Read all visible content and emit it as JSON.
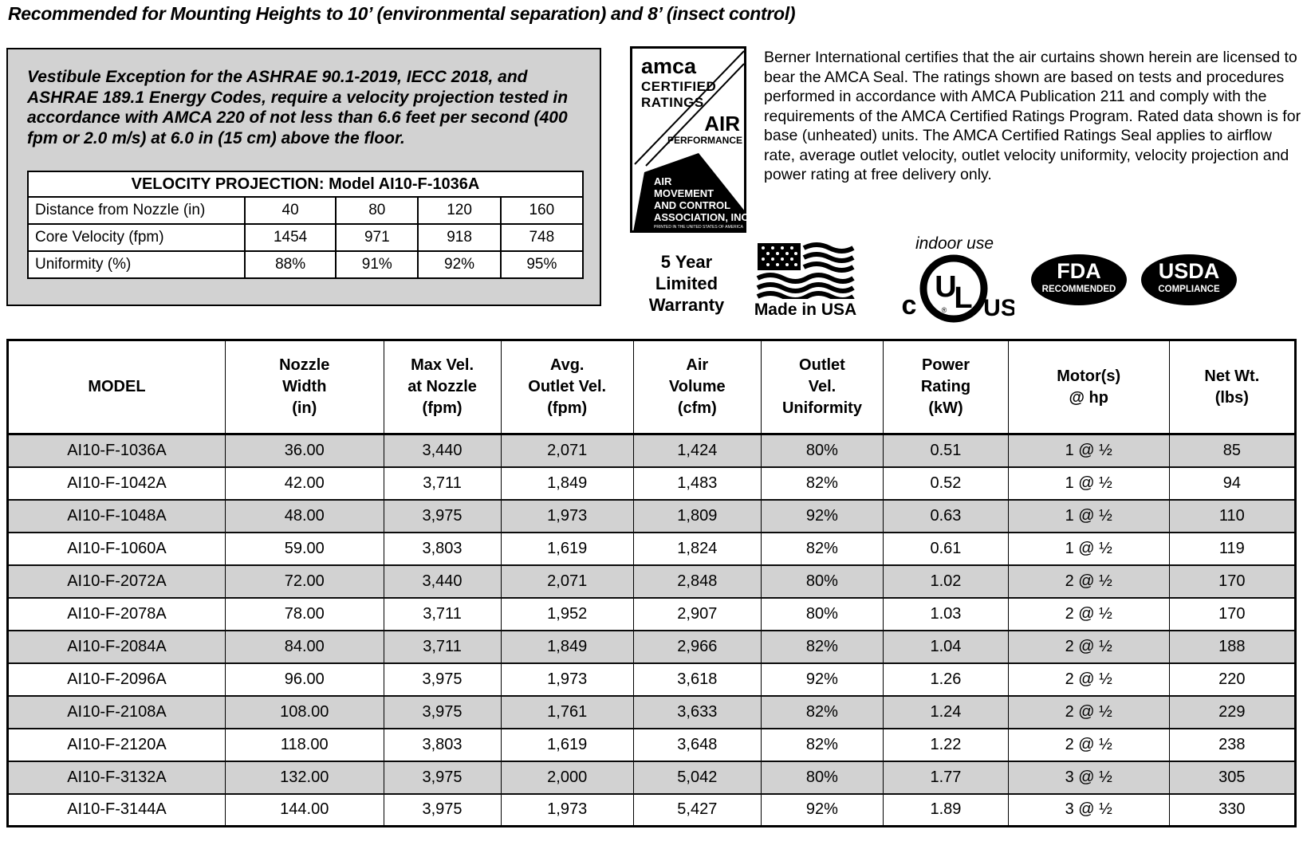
{
  "colors": {
    "row_alt": "#d2d2d2",
    "box_bg": "#d2d2d2",
    "ink": "#000000"
  },
  "page_title": "Recommended for Mounting Heights to 10’ (environmental separation) and 8’ (insect control)",
  "vestibule_box": {
    "text": "Vestibule Exception for the ASHRAE 90.1-2019, IECC 2018, and ASHRAE 189.1 Energy Codes, require a velocity projection tested in accordance with AMCA 220 of not less than 6.6 feet per second (400 fpm or 2.0 m/s) at 6.0 in (15 cm) above the floor.",
    "table": {
      "title": "VELOCITY PROJECTION: Model AI10-F-1036A",
      "rows": [
        {
          "label": "Distance from Nozzle (in)",
          "values": [
            "40",
            "80",
            "120",
            "160"
          ]
        },
        {
          "label": "Core Velocity (fpm)",
          "values": [
            "1454",
            "971",
            "918",
            "748"
          ]
        },
        {
          "label": "Uniformity (%)",
          "values": [
            "88%",
            "91%",
            "92%",
            "95%"
          ]
        }
      ]
    }
  },
  "amca": {
    "seal": {
      "brand": "amca",
      "certified": "CERTIFIED",
      "ratings": "RATINGS",
      "air": "AIR",
      "performance": "PERFORMANCE",
      "assoc_lines": [
        "AIR",
        "MOVEMENT",
        "AND CONTROL",
        "ASSOCIATION, INC."
      ],
      "printed": "PRINTED IN THE UNITED STATES OF AMERICA"
    },
    "certification_text": "Berner International certifies that the air curtains shown herein are licensed to bear the AMCA Seal.  The ratings shown are based on tests and procedures performed in accordance with AMCA Publication 211 and comply with the requirements of the AMCA Certified Ratings Program. Rated data shown is for base (unheated) units.  The AMCA Certified Ratings Seal applies to airflow rate, average outlet velocity, outlet velocity uniformity, velocity projection and power rating  at free delivery only."
  },
  "badges": {
    "warranty": "5 Year\nLimited\nWarranty",
    "made_in_usa": "Made in USA",
    "indoor_use": "indoor use",
    "ul": {
      "c": "c",
      "center": "UL",
      "us": "US",
      "registered": "®"
    },
    "fda": {
      "line1": "FDA",
      "line2": "RECOMMENDED"
    },
    "usda": {
      "line1": "USDA",
      "line2": "COMPLIANCE"
    }
  },
  "spec_table": {
    "headers": [
      "MODEL",
      "Nozzle\nWidth\n(in)",
      "Max Vel.\nat Nozzle\n(fpm)",
      "Avg.\nOutlet Vel.\n(fpm)",
      "Air\nVolume\n(cfm)",
      "Outlet\nVel.\nUniformity",
      "Power\nRating\n(kW)",
      "Motor(s)\n@ hp",
      "Net Wt.\n(lbs)"
    ],
    "col_widths_pct": [
      16.9,
      12.3,
      9.1,
      10.3,
      9.9,
      9.5,
      9.7,
      12.5,
      9.8
    ],
    "rows": [
      [
        "AI10-F-1036A",
        "36.00",
        "3,440",
        "2,071",
        "1,424",
        "80%",
        "0.51",
        "1 @ ½",
        "85"
      ],
      [
        "AI10-F-1042A",
        "42.00",
        "3,711",
        "1,849",
        "1,483",
        "82%",
        "0.52",
        "1 @ ½",
        "94"
      ],
      [
        "AI10-F-1048A",
        "48.00",
        "3,975",
        "1,973",
        "1,809",
        "92%",
        "0.63",
        "1 @ ½",
        "110"
      ],
      [
        "AI10-F-1060A",
        "59.00",
        "3,803",
        "1,619",
        "1,824",
        "82%",
        "0.61",
        "1 @ ½",
        "119"
      ],
      [
        "AI10-F-2072A",
        "72.00",
        "3,440",
        "2,071",
        "2,848",
        "80%",
        "1.02",
        "2 @ ½",
        "170"
      ],
      [
        "AI10-F-2078A",
        "78.00",
        "3,711",
        "1,952",
        "2,907",
        "80%",
        "1.03",
        "2 @ ½",
        "170"
      ],
      [
        "AI10-F-2084A",
        "84.00",
        "3,711",
        "1,849",
        "2,966",
        "82%",
        "1.04",
        "2 @ ½",
        "188"
      ],
      [
        "AI10-F-2096A",
        "96.00",
        "3,975",
        "1,973",
        "3,618",
        "92%",
        "1.26",
        "2 @ ½",
        "220"
      ],
      [
        "AI10-F-2108A",
        "108.00",
        "3,975",
        "1,761",
        "3,633",
        "82%",
        "1.24",
        "2 @ ½",
        "229"
      ],
      [
        "AI10-F-2120A",
        "118.00",
        "3,803",
        "1,619",
        "3,648",
        "82%",
        "1.22",
        "2 @ ½",
        "238"
      ],
      [
        "AI10-F-3132A",
        "132.00",
        "3,975",
        "2,000",
        "5,042",
        "80%",
        "1.77",
        "3 @ ½",
        "305"
      ],
      [
        "AI10-F-3144A",
        "144.00",
        "3,975",
        "1,973",
        "5,427",
        "92%",
        "1.89",
        "3 @ ½",
        "330"
      ]
    ]
  }
}
